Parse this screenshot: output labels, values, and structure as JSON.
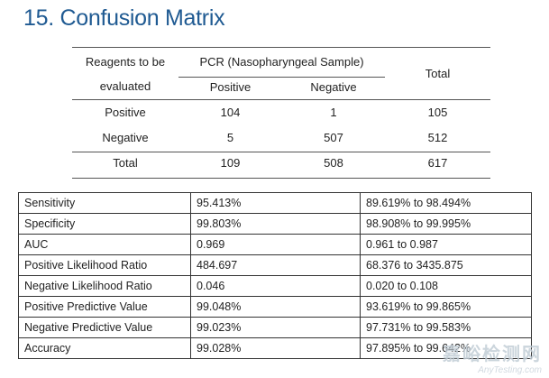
{
  "title": "15. Confusion Matrix",
  "confusion_matrix": {
    "header_col1_line1": "Reagents to be",
    "header_col1_line2": "evaluated",
    "group_header": "PCR (Nasopharyngeal Sample)",
    "sub_positive": "Positive",
    "sub_negative": "Negative",
    "total_header": "Total",
    "rows": [
      {
        "label": "Positive",
        "pos": "104",
        "neg": "1",
        "total": "105"
      },
      {
        "label": "Negative",
        "pos": "5",
        "neg": "507",
        "total": "512"
      },
      {
        "label": "Total",
        "pos": "109",
        "neg": "508",
        "total": "617"
      }
    ]
  },
  "stats": [
    {
      "metric": "Sensitivity",
      "value": "95.413%",
      "ci": "89.619% to 98.494%"
    },
    {
      "metric": "Specificity",
      "value": "99.803%",
      "ci": "98.908% to 99.995%"
    },
    {
      "metric": "AUC",
      "value": "0.969",
      "ci": "0.961 to 0.987"
    },
    {
      "metric": "Positive Likelihood Ratio",
      "value": "484.697",
      "ci": "68.376 to 3435.875"
    },
    {
      "metric": "Negative Likelihood Ratio",
      "value": "0.046",
      "ci": "0.020 to 0.108"
    },
    {
      "metric": "Positive Predictive Value",
      "value": "99.048%",
      "ci": "93.619% to 99.865%"
    },
    {
      "metric": "Negative Predictive Value",
      "value": "99.023%",
      "ci": "97.731% to 99.583%"
    },
    {
      "metric": "Accuracy",
      "value": "99.028%",
      "ci": "97.895% to 99.642%"
    }
  ],
  "watermark": {
    "line1": "嘉峪检测网",
    "line2": "AnyTesting.com"
  }
}
